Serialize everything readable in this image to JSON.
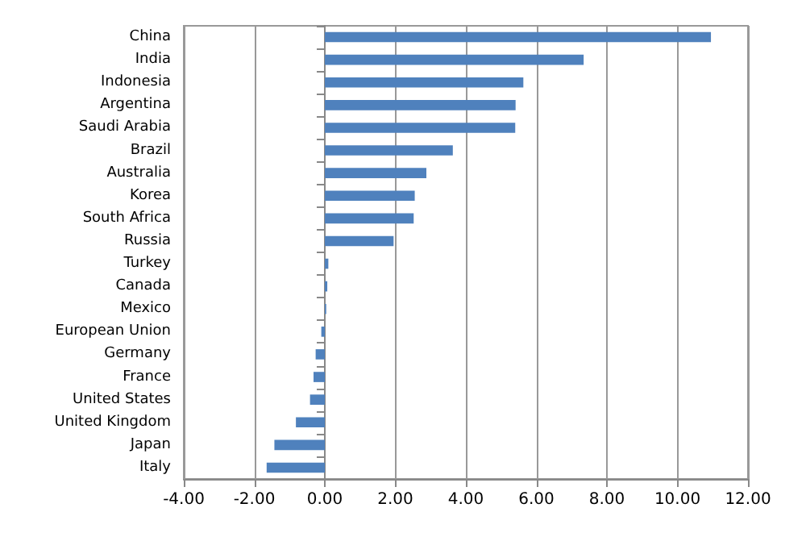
{
  "chart_data": {
    "type": "bar",
    "orientation": "horizontal",
    "categories": [
      "China",
      "India",
      "Indonesia",
      "Argentina",
      "Saudi Arabia",
      "Brazil",
      "Australia",
      "Korea",
      "South Africa",
      "Russia",
      "Turkey",
      "Canada",
      "Mexico",
      "European Union",
      "Germany",
      "France",
      "United States",
      "United Kingdom",
      "Japan",
      "Italy"
    ],
    "values": [
      10.95,
      7.34,
      5.63,
      5.41,
      5.4,
      3.63,
      2.88,
      2.55,
      2.52,
      1.95,
      0.1,
      0.07,
      0.04,
      -0.1,
      -0.26,
      -0.32,
      -0.42,
      -0.82,
      -1.43,
      -1.65
    ],
    "color": "#4f81bd",
    "xlim": [
      -4,
      12
    ],
    "xticks": [
      {
        "value": -4,
        "label": "-4.00"
      },
      {
        "value": -2,
        "label": "-2.00"
      },
      {
        "value": 0,
        "label": "0.00"
      },
      {
        "value": 2,
        "label": "2.00"
      },
      {
        "value": 4,
        "label": "4.00"
      },
      {
        "value": 6,
        "label": "6.00"
      },
      {
        "value": 8,
        "label": "8.00"
      },
      {
        "value": 10,
        "label": "10.00"
      },
      {
        "value": 12,
        "label": "12.00"
      }
    ],
    "grid": "x"
  }
}
